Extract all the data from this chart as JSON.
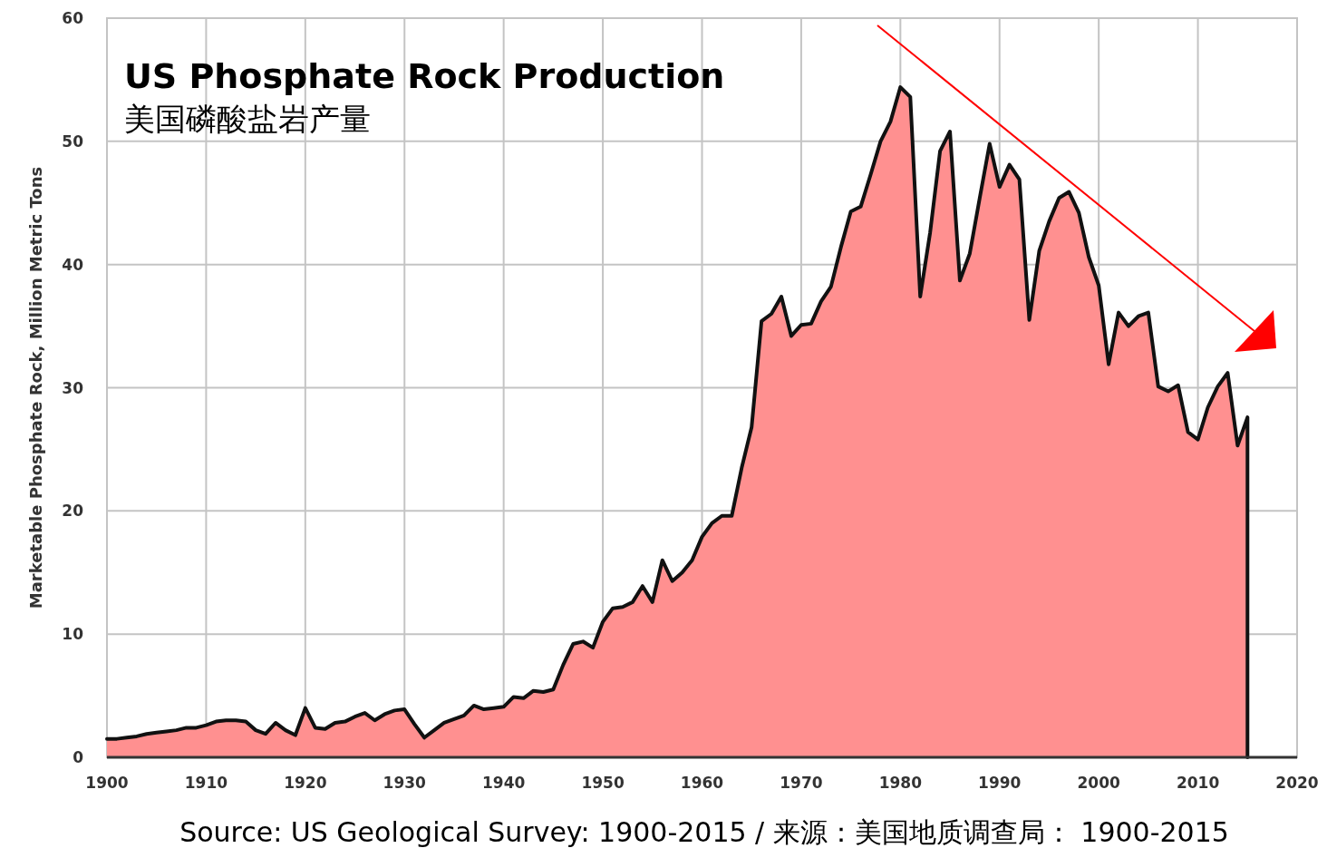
{
  "chart_data": {
    "type": "area",
    "title": "US Phosphate Rock Production",
    "subtitle": "美国磷酸盐岩产量",
    "ylabel": "Marketable Phosphate Rock, Million Metric Tons",
    "annotations": [
      "Source: US Geological Survey: 1900-2015 / 来源：美国地质调查局： 1900-2015"
    ],
    "x": [
      1900,
      1901,
      1902,
      1903,
      1904,
      1905,
      1906,
      1907,
      1908,
      1909,
      1910,
      1911,
      1912,
      1913,
      1914,
      1915,
      1916,
      1917,
      1918,
      1919,
      1920,
      1921,
      1922,
      1923,
      1924,
      1925,
      1926,
      1927,
      1928,
      1929,
      1930,
      1931,
      1932,
      1933,
      1934,
      1935,
      1936,
      1937,
      1938,
      1939,
      1940,
      1941,
      1942,
      1943,
      1944,
      1945,
      1946,
      1947,
      1948,
      1949,
      1950,
      1951,
      1952,
      1953,
      1954,
      1955,
      1956,
      1957,
      1958,
      1959,
      1960,
      1961,
      1962,
      1963,
      1964,
      1965,
      1966,
      1967,
      1968,
      1969,
      1970,
      1971,
      1972,
      1973,
      1974,
      1975,
      1976,
      1977,
      1978,
      1979,
      1980,
      1981,
      1982,
      1983,
      1984,
      1985,
      1986,
      1987,
      1988,
      1989,
      1990,
      1991,
      1992,
      1993,
      1994,
      1995,
      1996,
      1997,
      1998,
      1999,
      2000,
      2001,
      2002,
      2003,
      2004,
      2005,
      2006,
      2007,
      2008,
      2009,
      2010,
      2011,
      2012,
      2013,
      2014,
      2015
    ],
    "series": [
      {
        "color": "#ff9090",
        "values": [
          1.5,
          1.5,
          1.6,
          1.7,
          1.9,
          2.0,
          2.1,
          2.2,
          2.4,
          2.4,
          2.6,
          2.9,
          3.0,
          3.0,
          2.9,
          2.2,
          1.9,
          2.8,
          2.2,
          1.8,
          4.0,
          2.4,
          2.3,
          2.8,
          2.9,
          3.3,
          3.6,
          3.0,
          3.5,
          3.8,
          3.9,
          2.7,
          1.6,
          2.2,
          2.8,
          3.1,
          3.4,
          4.2,
          3.9,
          4.0,
          4.1,
          4.9,
          4.8,
          5.4,
          5.3,
          5.5,
          7.5,
          9.2,
          9.4,
          8.9,
          11.0,
          12.1,
          12.2,
          12.6,
          13.9,
          12.6,
          16.0,
          14.3,
          15.0,
          16.0,
          17.9,
          19.0,
          19.6,
          19.6,
          23.5,
          26.8,
          35.4,
          36.0,
          37.4,
          34.2,
          35.1,
          35.2,
          37.0,
          38.2,
          41.4,
          44.3,
          44.7,
          47.3,
          50.0,
          51.6,
          54.4,
          53.6,
          37.4,
          42.6,
          49.2,
          50.8,
          38.7,
          40.9,
          45.4,
          49.8,
          46.3,
          48.1,
          46.9,
          35.5,
          41.1,
          43.5,
          45.4,
          45.9,
          44.2,
          40.6,
          38.3,
          31.9,
          36.1,
          35.0,
          35.8,
          36.1,
          30.1,
          29.7,
          30.2,
          26.4,
          25.8,
          28.4,
          30.1,
          31.2,
          25.3,
          27.6
        ]
      }
    ],
    "xlim": [
      1900,
      2020
    ],
    "ylim": [
      0,
      60
    ],
    "xticks": [
      1900,
      1910,
      1920,
      1930,
      1940,
      1950,
      1960,
      1970,
      1980,
      1990,
      2000,
      2010,
      2020
    ],
    "yticks": [
      0,
      10,
      20,
      30,
      40,
      50,
      60
    ],
    "grid": true
  }
}
